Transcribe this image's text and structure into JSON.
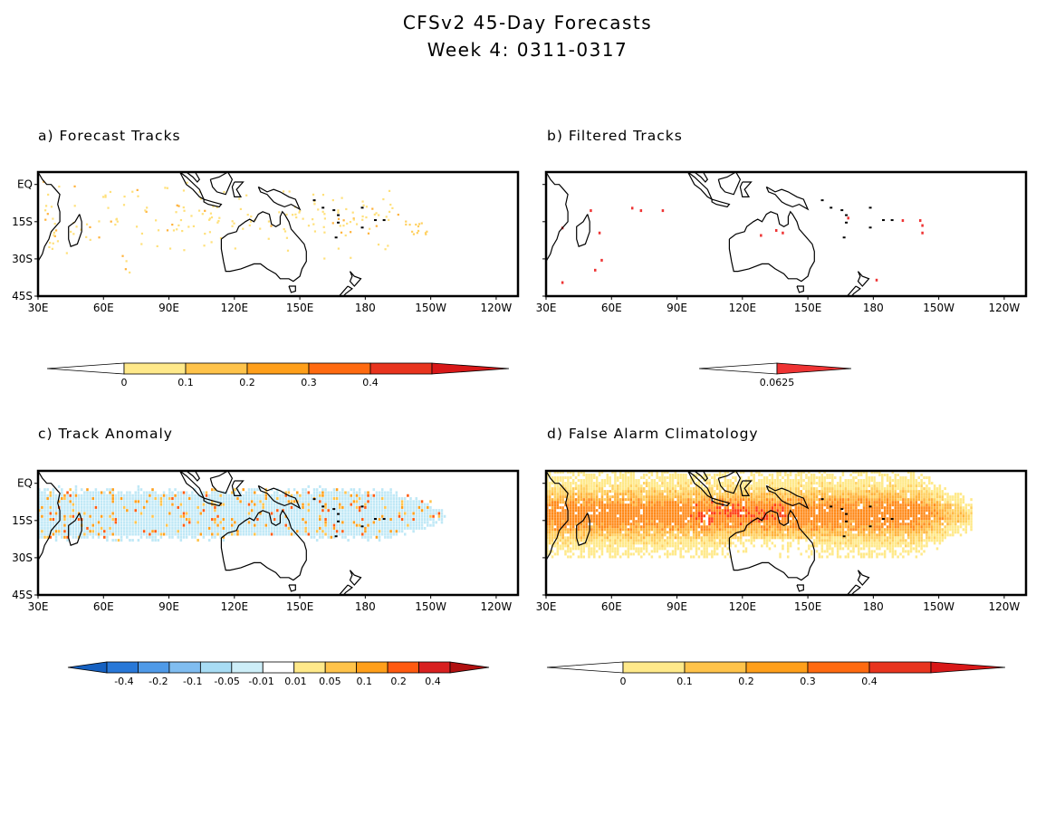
{
  "title": {
    "line1": "CFSv2 45-Day Forecasts",
    "line2": "Week 4: 0311-0317"
  },
  "map_axes": {
    "lon_range": [
      30,
      250
    ],
    "lat_range": [
      -45,
      5
    ],
    "y_ticks": [
      {
        "lat": 0,
        "label": "EQ"
      },
      {
        "lat": -15,
        "label": "15S"
      },
      {
        "lat": -30,
        "label": "30S"
      },
      {
        "lat": -45,
        "label": "45S"
      }
    ],
    "x_ticks": [
      {
        "lon": 30,
        "label": "30E"
      },
      {
        "lon": 60,
        "label": "60E"
      },
      {
        "lon": 90,
        "label": "90E"
      },
      {
        "lon": 120,
        "label": "120E"
      },
      {
        "lon": 150,
        "label": "150E"
      },
      {
        "lon": 180,
        "label": "180"
      },
      {
        "lon": 210,
        "label": "150W"
      },
      {
        "lon": 240,
        "label": "120W"
      }
    ]
  },
  "panels": [
    {
      "id": "a",
      "title": "a) Forecast Tracks",
      "show_y_labels": true,
      "pattern": "tracks",
      "colorbar": {
        "labels": [
          "0",
          "0.1",
          "0.2",
          "0.3",
          "0.4"
        ],
        "colors": [
          "#ffe98a",
          "#ffc34a",
          "#ff9f1a",
          "#ff6a10",
          "#e8341e"
        ],
        "under_color": "#ffffff",
        "over_color": "#d81818"
      }
    },
    {
      "id": "b",
      "title": "b) Filtered Tracks",
      "show_y_labels": false,
      "pattern": "filtered",
      "colorbar": {
        "labels": [
          "0.0625"
        ],
        "colors": [],
        "under_color": "#ffffff",
        "over_color": "#ee3333"
      }
    },
    {
      "id": "c",
      "title": "c) Track Anomaly",
      "show_y_labels": true,
      "pattern": "anomaly",
      "colorbar": {
        "labels": [
          "-0.4",
          "-0.2",
          "-0.1",
          "-0.05",
          "-0.01",
          "0.01",
          "0.05",
          "0.1",
          "0.2",
          "0.4"
        ],
        "colors": [
          "#2878d8",
          "#4f9ae8",
          "#80bdf0",
          "#a8dcf4",
          "#cdeef8",
          "#ffffff",
          "#ffe98a",
          "#ffc34a",
          "#ff9f1a",
          "#ff5a10",
          "#d82020"
        ],
        "under_color": "#1560c0",
        "over_color": "#b01010"
      }
    },
    {
      "id": "d",
      "title": "d) False Alarm Climatology",
      "show_y_labels": false,
      "pattern": "climatology",
      "colorbar": {
        "labels": [
          "0",
          "0.1",
          "0.2",
          "0.3",
          "0.4"
        ],
        "colors": [
          "#ffe98a",
          "#ffc34a",
          "#ff9f1a",
          "#ff6a10",
          "#e8341e"
        ],
        "under_color": "#ffffff",
        "over_color": "#d81818"
      }
    }
  ]
}
